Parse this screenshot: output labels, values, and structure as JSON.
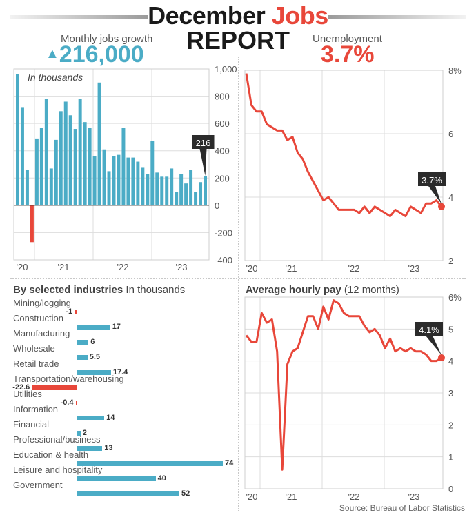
{
  "header": {
    "title_part1": "December",
    "title_part2": "Jobs",
    "title_line2": "REPORT",
    "jobs_label": "Monthly jobs growth",
    "jobs_arrow": "▲",
    "jobs_value": "216,000",
    "unemp_label": "Unemployment",
    "unemp_value": "3.7%"
  },
  "colors": {
    "blue": "#4bacc6",
    "red": "#e8473a",
    "dark": "#1a1a1a",
    "grid": "#dddddd",
    "callout_bg": "#2b2b2b"
  },
  "chart_data": [
    {
      "id": "jobs",
      "type": "bar",
      "title": "Monthly jobs growth",
      "annotation": "In thousands",
      "xlabel": "",
      "ylabel": "In thousands",
      "ylim": [
        -400,
        1000
      ],
      "yticks": [
        1000,
        800,
        600,
        400,
        200,
        0,
        -200,
        -400
      ],
      "ytick_labels": [
        "1,000",
        "800",
        "600",
        "400",
        "200",
        "0",
        "-200",
        "-400"
      ],
      "xtick_labels": [
        "'20",
        "'21",
        "'22",
        "'23"
      ],
      "grid": true,
      "values": [
        960,
        720,
        260,
        -270,
        490,
        570,
        780,
        270,
        480,
        690,
        760,
        660,
        560,
        780,
        610,
        570,
        360,
        900,
        410,
        250,
        360,
        370,
        570,
        350,
        350,
        320,
        280,
        230,
        470,
        240,
        210,
        210,
        270,
        100,
        230,
        160,
        260,
        100,
        170,
        216
      ],
      "callout": "216"
    },
    {
      "id": "unemployment",
      "type": "line",
      "title": "Unemployment",
      "ylim": [
        2,
        8
      ],
      "yticks": [
        8,
        6,
        4,
        2
      ],
      "ytick_labels": [
        "8%",
        "6",
        "4",
        "2"
      ],
      "xtick_labels": [
        "'20",
        "'21",
        "'22",
        "'23"
      ],
      "grid": true,
      "values": [
        7.9,
        6.9,
        6.7,
        6.7,
        6.3,
        6.2,
        6.1,
        6.1,
        5.8,
        5.9,
        5.4,
        5.2,
        4.8,
        4.5,
        4.2,
        3.9,
        4.0,
        3.8,
        3.6,
        3.6,
        3.6,
        3.6,
        3.5,
        3.7,
        3.5,
        3.7,
        3.6,
        3.5,
        3.4,
        3.6,
        3.5,
        3.4,
        3.7,
        3.6,
        3.5,
        3.8,
        3.8,
        3.9,
        3.7
      ],
      "callout": "3.7%"
    },
    {
      "id": "hourly_pay",
      "type": "line",
      "title": "Average hourly pay",
      "subtitle": "(12 months)",
      "ylim": [
        0,
        6
      ],
      "yticks": [
        6,
        5,
        4,
        3,
        2,
        1,
        0
      ],
      "ytick_labels": [
        "6%",
        "5",
        "4",
        "3",
        "2",
        "1",
        "0"
      ],
      "xtick_labels": [
        "'20",
        "'21",
        "'22",
        "'23"
      ],
      "grid": true,
      "values": [
        4.8,
        4.6,
        4.6,
        5.5,
        5.2,
        5.3,
        4.3,
        0.6,
        3.9,
        4.3,
        4.4,
        4.9,
        5.4,
        5.4,
        5.0,
        5.7,
        5.3,
        5.9,
        5.8,
        5.5,
        5.4,
        5.4,
        5.4,
        5.1,
        4.9,
        5.0,
        4.8,
        4.4,
        4.7,
        4.3,
        4.4,
        4.3,
        4.4,
        4.3,
        4.3,
        4.2,
        4.0,
        4.0,
        4.1
      ],
      "callout": "4.1%"
    },
    {
      "id": "industries",
      "type": "bar",
      "orientation": "horizontal",
      "title": "By selected industries",
      "subtitle": "In thousands",
      "categories": [
        "Mining/logging",
        "Construction",
        "Manufacturing",
        "Wholesale",
        "Retail trade",
        "Transportation/warehousing",
        "Utilities",
        "Information",
        "Financial",
        "Professional/business",
        "Education & health",
        "Leisure and hospitality",
        "Government"
      ],
      "values": [
        -1,
        17,
        6,
        5.5,
        17.4,
        -22.6,
        -0.4,
        14,
        2,
        13,
        74,
        40,
        52
      ],
      "value_labels": [
        "-1",
        "17",
        "6",
        "5.5",
        "17.4",
        "-22.6",
        "-0.4",
        "14",
        "2",
        "13",
        "74",
        "40",
        "52"
      ]
    }
  ],
  "footer": {
    "source": "Source: Bureau of Labor Statistics"
  }
}
